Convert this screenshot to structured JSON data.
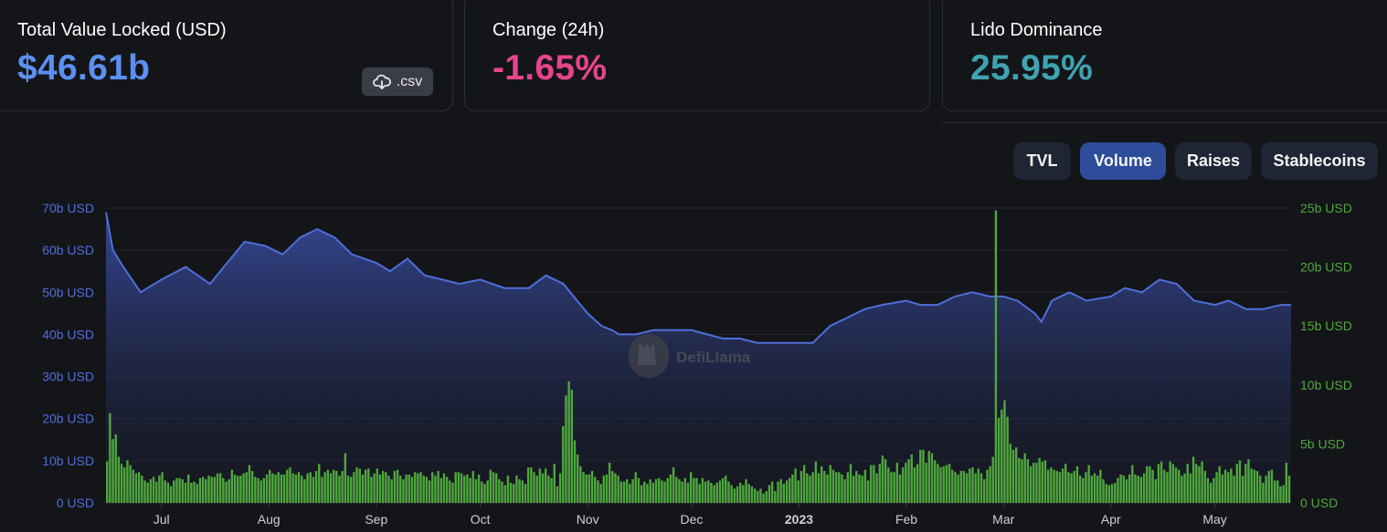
{
  "stats": {
    "tvl": {
      "label": "Total Value Locked (USD)",
      "value": "$46.61b",
      "color": "#5c8ff0"
    },
    "change": {
      "label": "Change (24h)",
      "value": "-1.65%",
      "color": "#e8448c"
    },
    "dominance": {
      "label": "Lido Dominance",
      "value": "25.95%",
      "color": "#3fa3b0"
    },
    "csv_label": ".csv",
    "csv_icon": "cloud-download-icon"
  },
  "tabs": [
    {
      "label": "TVL",
      "active": false
    },
    {
      "label": "Volume",
      "active": true
    },
    {
      "label": "Raises",
      "active": false
    },
    {
      "label": "Stablecoins",
      "active": false
    }
  ],
  "watermark": "DefiLlama",
  "chart_data": {
    "type": "area+bar",
    "series": [
      {
        "name": "TVL",
        "type": "area",
        "axis": "left",
        "unit": "b USD",
        "color": "#4f6ed8",
        "x": [
          "2022-06-15",
          "2022-06-17",
          "2022-06-20",
          "2022-06-25",
          "2022-07-01",
          "2022-07-08",
          "2022-07-15",
          "2022-07-20",
          "2022-07-25",
          "2022-07-31",
          "2022-08-05",
          "2022-08-10",
          "2022-08-15",
          "2022-08-20",
          "2022-08-25",
          "2022-09-01",
          "2022-09-05",
          "2022-09-10",
          "2022-09-15",
          "2022-09-20",
          "2022-09-25",
          "2022-10-01",
          "2022-10-08",
          "2022-10-15",
          "2022-10-20",
          "2022-10-25",
          "2022-11-01",
          "2022-11-05",
          "2022-11-08",
          "2022-11-10",
          "2022-11-15",
          "2022-11-20",
          "2022-11-25",
          "2022-12-01",
          "2022-12-10",
          "2022-12-15",
          "2022-12-20",
          "2022-12-25",
          "2022-12-31",
          "2023-01-05",
          "2023-01-10",
          "2023-01-15",
          "2023-01-20",
          "2023-01-25",
          "2023-02-01",
          "2023-02-05",
          "2023-02-10",
          "2023-02-15",
          "2023-02-20",
          "2023-02-25",
          "2023-03-01",
          "2023-03-05",
          "2023-03-10",
          "2023-03-12",
          "2023-03-15",
          "2023-03-20",
          "2023-03-25",
          "2023-04-01",
          "2023-04-05",
          "2023-04-10",
          "2023-04-15",
          "2023-04-20",
          "2023-04-25",
          "2023-05-01",
          "2023-05-05",
          "2023-05-10",
          "2023-05-15",
          "2023-05-20",
          "2023-05-23"
        ],
        "values": [
          69,
          60,
          56,
          50,
          53,
          56,
          52,
          57,
          62,
          61,
          59,
          63,
          65,
          63,
          59,
          57,
          55,
          58,
          54,
          53,
          52,
          53,
          51,
          51,
          54,
          52,
          45,
          42,
          41,
          40,
          40,
          41,
          41,
          41,
          39,
          39,
          38,
          38,
          38,
          38,
          42,
          44,
          46,
          47,
          48,
          47,
          47,
          49,
          50,
          49,
          49,
          48,
          45,
          43,
          48,
          50,
          48,
          49,
          51,
          50,
          53,
          52,
          48,
          47,
          48,
          46,
          46,
          47,
          47
        ]
      },
      {
        "name": "Volume",
        "type": "bar",
        "axis": "right",
        "unit": "b USD",
        "color": "#4fa83d",
        "x_start": "2022-06-15",
        "x_end": "2023-05-23",
        "values": [
          3.5,
          7.6,
          5.4,
          5.8,
          3.9,
          3.3,
          3.0,
          3.6,
          3.2,
          2.8,
          2.5,
          2.6,
          2.3,
          1.9,
          1.7,
          2.0,
          2.2,
          1.8,
          2.3,
          2.6,
          1.9,
          1.7,
          1.4,
          1.9,
          2.1,
          2.1,
          2.0,
          1.7,
          2.4,
          1.7,
          1.8,
          1.6,
          2.1,
          2.2,
          2.0,
          2.3,
          2.2,
          2.2,
          2.5,
          2.5,
          2.1,
          1.8,
          2.0,
          2.8,
          2.4,
          2.3,
          2.3,
          2.5,
          2.6,
          3.2,
          2.7,
          2.2,
          2.1,
          1.9,
          2.1,
          2.4,
          2.8,
          2.5,
          2.4,
          2.6,
          2.4,
          2.4,
          2.8,
          3.0,
          2.5,
          2.4,
          2.6,
          2.3,
          2.0,
          2.5,
          2.6,
          2.2,
          2.7,
          3.3,
          2.2,
          2.6,
          2.8,
          2.5,
          2.8,
          2.7,
          2.3,
          2.7,
          4.2,
          2.3,
          2.2,
          2.6,
          3.0,
          2.9,
          2.4,
          2.8,
          2.9,
          2.2,
          2.5,
          2.9,
          2.4,
          2.7,
          2.6,
          2.3,
          2.0,
          2.7,
          2.8,
          2.3,
          2.0,
          2.4,
          2.4,
          2.2,
          2.6,
          2.5,
          2.6,
          2.3,
          2.2,
          1.9,
          2.6,
          2.3,
          2.7,
          2.1,
          2.5,
          2.2,
          1.9,
          1.7,
          2.6,
          2.6,
          2.5,
          2.3,
          2.4,
          2.1,
          2.7,
          2.0,
          2.4,
          1.8,
          1.6,
          1.9,
          2.8,
          2.6,
          2.5,
          2.0,
          1.8,
          1.5,
          2.3,
          1.7,
          1.6,
          2.3,
          2.0,
          1.9,
          1.6,
          3.0,
          3.0,
          2.6,
          2.3,
          2.9,
          2.5,
          2.9,
          2.3,
          2.1,
          3.3,
          1.4,
          2.5,
          6.5,
          9.1,
          10.3,
          9.6,
          5.3,
          4.1,
          3.1,
          2.6,
          2.4,
          2.4,
          2.7,
          2.2,
          1.9,
          1.6,
          2.3,
          2.4,
          3.4,
          2.7,
          2.5,
          2.3,
          1.8,
          1.8,
          2.0,
          1.6,
          2.0,
          2.6,
          2.1,
          1.5,
          1.8,
          1.6,
          2.0,
          1.7,
          2.0,
          2.1,
          1.9,
          1.8,
          2.1,
          2.4,
          3.0,
          2.2,
          2.0,
          1.8,
          2.1,
          1.7,
          2.6,
          2.1,
          2.1,
          1.6,
          2.1,
          1.8,
          1.9,
          1.7,
          1.5,
          1.7,
          1.9,
          2.1,
          2.3,
          1.8,
          1.5,
          1.2,
          1.4,
          1.7,
          1.5,
          2.0,
          1.6,
          1.4,
          1.2,
          1.0,
          1.2,
          0.8,
          1.0,
          1.5,
          1.8,
          1.0,
          1.8,
          2.0,
          1.6,
          1.9,
          2.1,
          2.4,
          2.9,
          1.9,
          2.7,
          3.2,
          2.5,
          2.3,
          2.6,
          3.5,
          2.5,
          3.1,
          2.7,
          2.4,
          3.2,
          2.8,
          2.6,
          2.6,
          2.4,
          2.0,
          2.6,
          3.3,
          2.3,
          2.7,
          2.4,
          2.3,
          2.8,
          1.9,
          3.2,
          3.2,
          2.5,
          3.3,
          4.0,
          3.7,
          3.0,
          2.6,
          2.6,
          3.4,
          2.4,
          3.0,
          3.4,
          3.7,
          4.1,
          3.0,
          3.3,
          4.5,
          4.5,
          3.4,
          4.4,
          4.2,
          3.6,
          3.3,
          3.0,
          3.1,
          3.2,
          3.3,
          2.8,
          2.6,
          2.4,
          2.7,
          2.7,
          2.5,
          2.9,
          3.0,
          2.5,
          2.9,
          2.5,
          2.0,
          2.8,
          3.1,
          3.9,
          24.8,
          7.2,
          7.9,
          8.7,
          7.3,
          5.0,
          4.5,
          4.7,
          3.8,
          3.7,
          4.2,
          3.7,
          3.1,
          3.4,
          3.4,
          3.8,
          3.5,
          3.6,
          2.8,
          3.0,
          2.8,
          2.7,
          2.6,
          2.9,
          3.3,
          2.6,
          2.5,
          2.7,
          3.1,
          2.3,
          2.1,
          2.6,
          3.2,
          2.3,
          2.5,
          2.3,
          2.8,
          2.0,
          1.6,
          1.5,
          1.6,
          1.7,
          2.1,
          2.4,
          2.3,
          2.0,
          2.4,
          3.2,
          2.4,
          2.3,
          2.2,
          2.5,
          3.1,
          3.1,
          2.8,
          2.0,
          3.3,
          3.5,
          2.8,
          2.6,
          3.5,
          3.3,
          3.0,
          2.8,
          2.3,
          2.5,
          3.3,
          2.5,
          3.9,
          3.3,
          3.1,
          3.5,
          2.7,
          2.1,
          1.7,
          2.1,
          2.6,
          3.1,
          2.4,
          2.8,
          2.6,
          2.9,
          2.3,
          3.3,
          3.6,
          2.3,
          3.3,
          3.7,
          2.9,
          2.8,
          2.7,
          2.3,
          1.7,
          2.3,
          2.7,
          2.8,
          1.9,
          1.9,
          1.4,
          1.5,
          3.4,
          2.3
        ]
      }
    ],
    "left_axis": {
      "ticks": [
        "0 USD",
        "10b USD",
        "20b USD",
        "30b USD",
        "40b USD",
        "50b USD",
        "60b USD",
        "70b USD"
      ],
      "range": [
        0,
        70
      ]
    },
    "right_axis": {
      "ticks": [
        "0 USD",
        "5b USD",
        "10b USD",
        "15b USD",
        "20b USD",
        "25b USD"
      ],
      "range": [
        0,
        25
      ]
    },
    "x_ticks": [
      {
        "label": "Jul",
        "date": "2022-07-01"
      },
      {
        "label": "Aug",
        "date": "2022-08-01"
      },
      {
        "label": "Sep",
        "date": "2022-09-01"
      },
      {
        "label": "Oct",
        "date": "2022-10-01"
      },
      {
        "label": "Nov",
        "date": "2022-11-01"
      },
      {
        "label": "Dec",
        "date": "2022-12-01"
      },
      {
        "label": "2023",
        "date": "2023-01-01",
        "bold": true
      },
      {
        "label": "Feb",
        "date": "2023-02-01"
      },
      {
        "label": "Mar",
        "date": "2023-03-01"
      },
      {
        "label": "Apr",
        "date": "2023-04-01"
      },
      {
        "label": "May",
        "date": "2023-05-01"
      }
    ],
    "grid": true
  }
}
